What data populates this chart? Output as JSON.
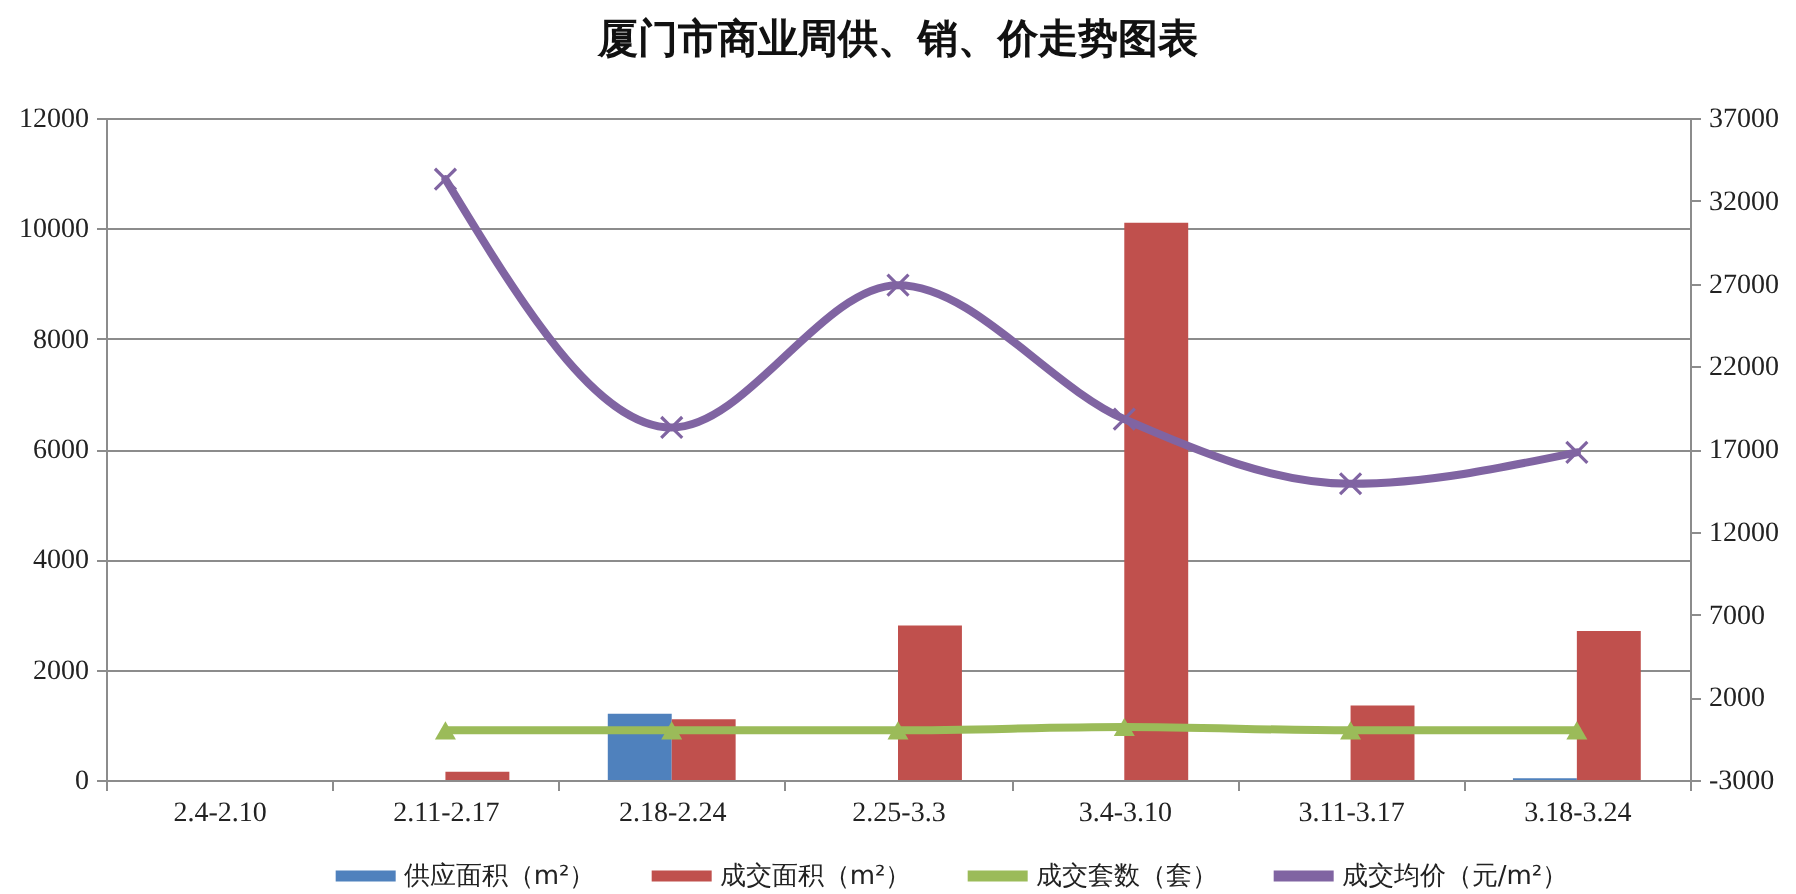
{
  "chart_data": {
    "type": "bar",
    "title": "厦门市商业周供、销、价走势图表",
    "categories": [
      "2.4-2.10",
      "2.11-2.17",
      "2.18-2.24",
      "2.25-3.3",
      "3.4-3.10",
      "3.11-3.17",
      "3.18-3.24"
    ],
    "series": [
      {
        "name": "供应面积（m²）",
        "color": "#4f81bd",
        "values": [
          null,
          null,
          1200,
          null,
          null,
          null,
          30
        ]
      },
      {
        "name": "成交面积（m²）",
        "color": "#c0504d",
        "values": [
          null,
          150,
          1100,
          2800,
          10100,
          1350,
          2700
        ]
      },
      {
        "name": "成交套数（套）",
        "type": "line",
        "axis": "y2",
        "color": "#9bbb59",
        "marker": "triangle",
        "values": [
          null,
          0,
          0,
          0,
          200,
          0,
          0
        ]
      },
      {
        "name": "成交均价（元/m²）",
        "type": "line",
        "axis": "y2",
        "color": "#8064a2",
        "marker": "cross",
        "values": [
          null,
          33300,
          18300,
          26900,
          18800,
          14900,
          16800
        ]
      }
    ],
    "ylim": [
      0,
      12000
    ],
    "yticks": [
      0,
      2000,
      4000,
      6000,
      8000,
      10000,
      12000
    ],
    "y2lim": [
      -3000,
      37000
    ],
    "y2ticks": [
      -3000,
      2000,
      7000,
      12000,
      17000,
      22000,
      27000,
      32000,
      37000
    ],
    "grid": "y",
    "legend": "bottom"
  }
}
